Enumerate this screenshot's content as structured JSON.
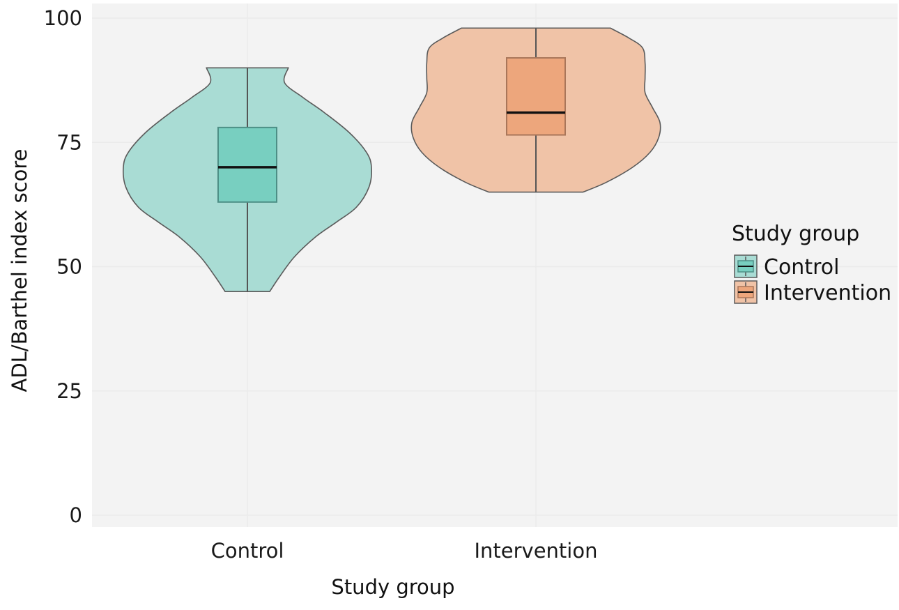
{
  "chart_data": {
    "type": "violin",
    "xlabel": "Study group",
    "ylabel": "ADL/Barthel index score",
    "ylim": [
      0,
      100
    ],
    "yticks": [
      0,
      25,
      50,
      75,
      100
    ],
    "categories": [
      "Control",
      "Intervention"
    ],
    "grid": true,
    "legend": {
      "title": "Study group",
      "placement": "right",
      "entries": [
        "Control",
        "Intervention"
      ]
    },
    "colors": {
      "Control": {
        "fill": "#a9dcd4",
        "box": "#78cfc0",
        "box_edge": "#4d8f86"
      },
      "Intervention": {
        "fill": "#f0c3a7",
        "box": "#eda67c",
        "box_edge": "#a9765a"
      },
      "outline": "#5a5a5a",
      "panel": "#f3f3f3"
    },
    "series": [
      {
        "name": "Control",
        "box": {
          "min": 45,
          "q1": 63,
          "median": 70,
          "q3": 78,
          "max": 90
        },
        "density_profile": [
          [
            45,
            0.18
          ],
          [
            48,
            0.26
          ],
          [
            52,
            0.38
          ],
          [
            56,
            0.55
          ],
          [
            59,
            0.72
          ],
          [
            62,
            0.88
          ],
          [
            66,
            0.98
          ],
          [
            70,
            1.0
          ],
          [
            73,
            0.96
          ],
          [
            77,
            0.82
          ],
          [
            81,
            0.62
          ],
          [
            84,
            0.45
          ],
          [
            87,
            0.3
          ],
          [
            90,
            0.33
          ]
        ]
      },
      {
        "name": "Intervention",
        "box": {
          "min": 65,
          "q1": 76.5,
          "median": 81,
          "q3": 92,
          "max": 98
        },
        "density_profile": [
          [
            65,
            0.38
          ],
          [
            67,
            0.57
          ],
          [
            70,
            0.78
          ],
          [
            73,
            0.92
          ],
          [
            76,
            0.99
          ],
          [
            79,
            1.0
          ],
          [
            82,
            0.94
          ],
          [
            85,
            0.88
          ],
          [
            88,
            0.88
          ],
          [
            91,
            0.88
          ],
          [
            94,
            0.86
          ],
          [
            96,
            0.75
          ],
          [
            98,
            0.6
          ]
        ]
      }
    ]
  }
}
